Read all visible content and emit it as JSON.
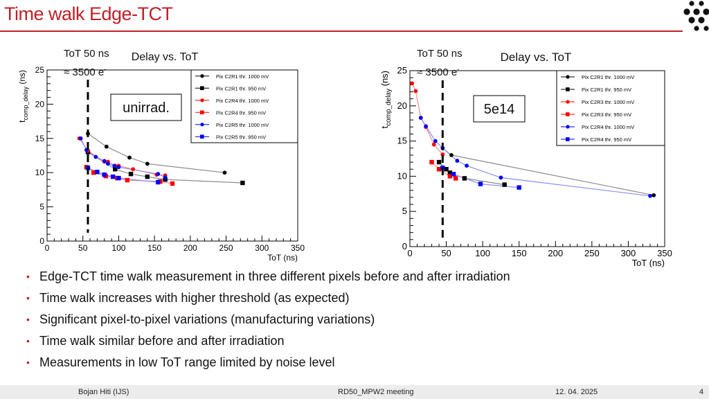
{
  "slide": {
    "title": "Time walk Edge-TCT",
    "bullets": [
      "Edge-TCT time walk measurement in three different pixels before and after irradiation",
      "Time walk increases with higher threshold (as expected)",
      "Significant pixel-to-pixel variations (manufacturing variations)",
      "Time walk similar before and after irradiation",
      "Measurements in low ToT range limited by noise level"
    ],
    "footer": {
      "author": "Bojan Hiti (IJS)",
      "event": "RD50_MPW2 meeting",
      "date": "12. 04. 2025",
      "page": "4"
    },
    "panels": [
      {
        "tot_note": "ToT 50 ns",
        "charge_note": "≈ 3500 e",
        "charge_sup": "-"
      },
      {
        "tot_note": "ToT 50 ns",
        "charge_note": "≈ 3500 e",
        "charge_sup": "-"
      }
    ],
    "colors": {
      "accent": "#c0202a",
      "black": "#000000",
      "red": "#ff0000",
      "blue": "#0000ff",
      "grey_line": "#8c8c8c",
      "light_red": "#f08c8c",
      "light_blue": "#8c8cf0"
    }
  },
  "chart_data": [
    {
      "type": "line",
      "title": "Delay vs. ToT",
      "annotation": "unirrad.",
      "xlabel": "ToT (ns)",
      "ylabel": "t_comp_delay (ns)",
      "ylabel_main": "t",
      "ylabel_sub": "comp_delay",
      "ylabel_unit": " (ns)",
      "xlim": [
        0,
        350
      ],
      "ylim": [
        0,
        25
      ],
      "xticks": [
        0,
        50,
        100,
        150,
        200,
        250,
        300,
        350
      ],
      "yticks": [
        0,
        5,
        10,
        15,
        20,
        25
      ],
      "threshold_x": 57,
      "legend_position": "top-right",
      "series": [
        {
          "name": "Pix C2R1 thr. 1000 mV",
          "color": "black",
          "marker": "circle",
          "x": [
            57,
            83,
            115,
            140,
            248
          ],
          "y": [
            15.7,
            13.8,
            12.2,
            11.3,
            10.0
          ]
        },
        {
          "name": "Pix C2R1 thr. 950 mV",
          "color": "black",
          "marker": "square",
          "x": [
            57,
            95,
            117,
            140,
            165,
            273
          ],
          "y": [
            13.0,
            10.5,
            9.8,
            9.4,
            9.0,
            8.5
          ]
        },
        {
          "name": "Pix C2R4 thr. 1000 mV",
          "color": "red",
          "marker": "circle",
          "x": [
            45,
            57,
            80,
            85,
            95,
            100,
            120,
            153,
            165
          ],
          "y": [
            15.0,
            13.2,
            11.6,
            11.6,
            11.0,
            11.0,
            10.5,
            9.7,
            9.6
          ]
        },
        {
          "name": "Pix C2R4 thr. 950 mV",
          "color": "red",
          "marker": "square",
          "x": [
            55,
            65,
            82,
            98,
            112,
            158,
            175
          ],
          "y": [
            10.8,
            10.0,
            9.5,
            9.2,
            8.9,
            8.7,
            8.4
          ]
        },
        {
          "name": "Pix C2R5 thr. 1000 mV",
          "color": "blue",
          "marker": "circle",
          "x": [
            47,
            55,
            68,
            80,
            85,
            94,
            100,
            155,
            165
          ],
          "y": [
            15.0,
            13.3,
            12.3,
            11.7,
            11.3,
            11.0,
            10.8,
            9.8,
            9.3
          ]
        },
        {
          "name": "Pix C2R5 thr. 950 mV",
          "color": "blue",
          "marker": "square",
          "x": [
            57,
            70,
            80,
            92,
            100,
            155
          ],
          "y": [
            10.7,
            10.1,
            9.7,
            9.4,
            9.2,
            8.6
          ]
        }
      ]
    },
    {
      "type": "line",
      "title": "Delay vs. ToT",
      "annotation": "5e14",
      "xlabel": "ToT (ns)",
      "ylabel": "t_comp_delay (ns)",
      "ylabel_main": "t",
      "ylabel_sub": "comp_delay",
      "ylabel_unit": " (ns)",
      "xlim": [
        0,
        350
      ],
      "ylim": [
        0,
        25
      ],
      "xticks": [
        0,
        50,
        100,
        150,
        200,
        250,
        300,
        350
      ],
      "yticks": [
        0,
        5,
        10,
        15,
        20,
        25
      ],
      "threshold_x": 45,
      "legend_position": "top-right",
      "series": [
        {
          "name": "Pix C2R1 thr. 1000 mV",
          "color": "black",
          "marker": "circle",
          "x": [
            45,
            57,
            335
          ],
          "y": [
            14.0,
            13.0,
            7.3
          ]
        },
        {
          "name": "Pix C2R1 thr. 950 mV",
          "color": "black",
          "marker": "square",
          "x": [
            40,
            50,
            55,
            75,
            130
          ],
          "y": [
            12.0,
            11.0,
            10.5,
            9.7,
            8.8
          ]
        },
        {
          "name": "Pix C2R3 thr. 1000 mV",
          "color": "red",
          "marker": "circle",
          "x": [
            3,
            8,
            15,
            22,
            33,
            45
          ],
          "y": [
            23.2,
            22.1,
            18.3,
            17.0,
            14.5,
            13.1
          ]
        },
        {
          "name": "Pix C2R3 thr. 950 mV",
          "color": "red",
          "marker": "square",
          "x": [
            30,
            40,
            55,
            63
          ],
          "y": [
            12.0,
            11.0,
            10.0,
            9.7
          ]
        },
        {
          "name": "Pix C2R4 thr. 1000 mV",
          "color": "blue",
          "marker": "circle",
          "x": [
            15,
            22,
            35,
            45,
            65,
            78,
            125,
            330
          ],
          "y": [
            18.3,
            17.1,
            15.0,
            14.0,
            12.2,
            11.5,
            9.8,
            7.2
          ]
        },
        {
          "name": "Pix C2R4 thr. 950 mV",
          "color": "blue",
          "marker": "square",
          "x": [
            45,
            60,
            97,
            150
          ],
          "y": [
            11.2,
            10.3,
            8.9,
            8.4
          ]
        }
      ]
    }
  ]
}
